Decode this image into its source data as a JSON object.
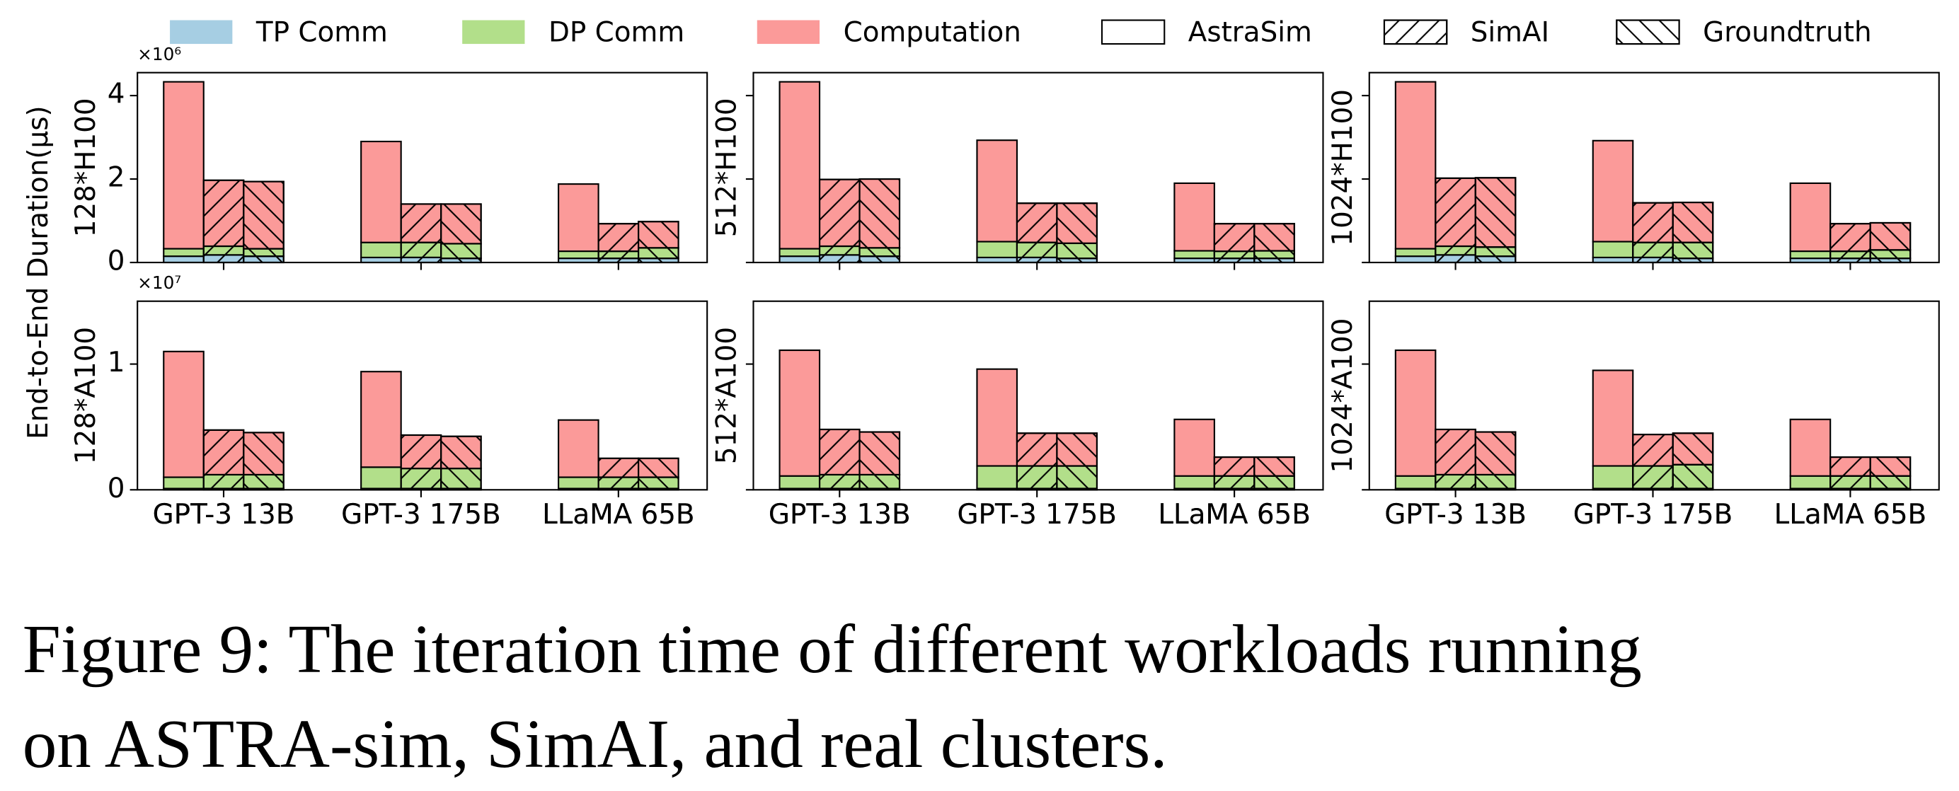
{
  "chart_data": {
    "type": "bar",
    "stacked": true,
    "ylabel": "End-to-End Duration(μs)",
    "categories": [
      "GPT-3 13B",
      "GPT-3 175B",
      "LLaMA 65B"
    ],
    "series": [
      {
        "name": "TP Comm",
        "color": "#a6cee3"
      },
      {
        "name": "DP Comm",
        "color": "#b2df8a"
      },
      {
        "name": "Computation",
        "color": "#fb9a99"
      }
    ],
    "groups": [
      {
        "name": "AstraSim",
        "hatch": "none"
      },
      {
        "name": "SimAI",
        "hatch": "/"
      },
      {
        "name": "Groundtruth",
        "hatch": "\\"
      }
    ],
    "panels": [
      {
        "label": "128*H100",
        "ylim": [
          0,
          4.55
        ],
        "yticks": [
          0,
          2,
          4
        ],
        "tick_labels": true,
        "offset_label": "×10⁶",
        "values": [
          [
            [
              0.15,
              0.18,
              4.0
            ],
            [
              0.18,
              0.21,
              1.58
            ],
            [
              0.15,
              0.18,
              1.61
            ]
          ],
          [
            [
              0.12,
              0.36,
              2.42
            ],
            [
              0.12,
              0.36,
              0.92
            ],
            [
              0.1,
              0.35,
              0.95
            ]
          ],
          [
            [
              0.1,
              0.17,
              1.61
            ],
            [
              0.1,
              0.17,
              0.66
            ],
            [
              0.1,
              0.25,
              0.63
            ]
          ]
        ]
      },
      {
        "label": "512*H100",
        "ylim": [
          0,
          4.55
        ],
        "yticks": [
          0,
          2,
          4
        ],
        "tick_labels": false,
        "values": [
          [
            [
              0.15,
              0.18,
              4.0
            ],
            [
              0.18,
              0.21,
              1.6
            ],
            [
              0.15,
              0.2,
              1.65
            ]
          ],
          [
            [
              0.12,
              0.38,
              2.43
            ],
            [
              0.12,
              0.36,
              0.94
            ],
            [
              0.1,
              0.36,
              0.96
            ]
          ],
          [
            [
              0.1,
              0.18,
              1.62
            ],
            [
              0.1,
              0.17,
              0.66
            ],
            [
              0.1,
              0.18,
              0.65
            ]
          ]
        ]
      },
      {
        "label": "1024*H100",
        "ylim": [
          0,
          4.55
        ],
        "yticks": [
          0,
          2,
          4
        ],
        "tick_labels": false,
        "values": [
          [
            [
              0.15,
              0.18,
              4.0
            ],
            [
              0.18,
              0.21,
              1.63
            ],
            [
              0.15,
              0.22,
              1.66
            ]
          ],
          [
            [
              0.12,
              0.38,
              2.42
            ],
            [
              0.12,
              0.36,
              0.95
            ],
            [
              0.1,
              0.38,
              0.96
            ]
          ],
          [
            [
              0.1,
              0.17,
              1.63
            ],
            [
              0.1,
              0.17,
              0.66
            ],
            [
              0.1,
              0.2,
              0.65
            ]
          ]
        ]
      },
      {
        "label": "128*A100",
        "ylim": [
          0,
          1.5
        ],
        "yticks": [
          0,
          1
        ],
        "tick_labels": true,
        "offset_label": "×10⁷",
        "values": [
          [
            [
              0.01,
              0.09,
              1.0
            ],
            [
              0.01,
              0.11,
              0.355
            ],
            [
              0.01,
              0.11,
              0.335
            ]
          ],
          [
            [
              0.01,
              0.17,
              0.76
            ],
            [
              0.01,
              0.16,
              0.265
            ],
            [
              0.01,
              0.16,
              0.255
            ]
          ],
          [
            [
              0.01,
              0.09,
              0.455
            ],
            [
              0.01,
              0.09,
              0.15
            ],
            [
              0.01,
              0.09,
              0.15
            ]
          ]
        ]
      },
      {
        "label": "512*A100",
        "ylim": [
          0,
          1.5
        ],
        "yticks": [
          0,
          1
        ],
        "tick_labels": false,
        "values": [
          [
            [
              0.01,
              0.1,
              1.0
            ],
            [
              0.01,
              0.11,
              0.36
            ],
            [
              0.01,
              0.11,
              0.34
            ]
          ],
          [
            [
              0.01,
              0.18,
              0.77
            ],
            [
              0.01,
              0.18,
              0.26
            ],
            [
              0.01,
              0.18,
              0.26
            ]
          ],
          [
            [
              0.01,
              0.1,
              0.45
            ],
            [
              0.01,
              0.1,
              0.15
            ],
            [
              0.01,
              0.1,
              0.15
            ]
          ]
        ]
      },
      {
        "label": "1024*A100",
        "ylim": [
          0,
          1.5
        ],
        "yticks": [
          0,
          1
        ],
        "tick_labels": false,
        "values": [
          [
            [
              0.01,
              0.1,
              1.0
            ],
            [
              0.01,
              0.11,
              0.36
            ],
            [
              0.01,
              0.11,
              0.34
            ]
          ],
          [
            [
              0.01,
              0.18,
              0.76
            ],
            [
              0.01,
              0.18,
              0.25
            ],
            [
              0.01,
              0.19,
              0.25
            ]
          ],
          [
            [
              0.01,
              0.1,
              0.45
            ],
            [
              0.01,
              0.1,
              0.15
            ],
            [
              0.01,
              0.1,
              0.15
            ]
          ]
        ]
      }
    ]
  },
  "caption": [
    "Figure 9: The iteration time of different workloads running",
    "on ASTRA-sim, SimAI, and real clusters."
  ]
}
